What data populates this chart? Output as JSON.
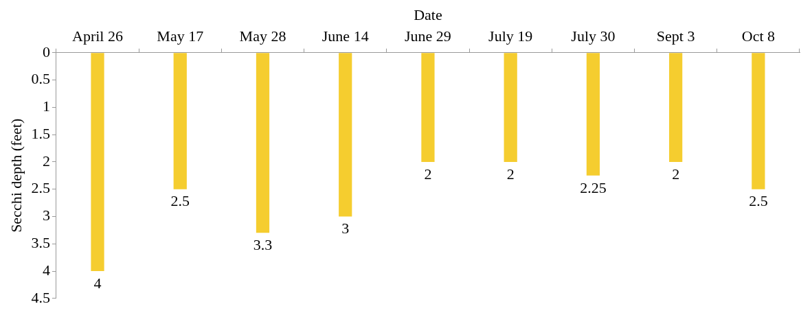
{
  "chart_data": {
    "type": "bar",
    "xlabel": "Date",
    "ylabel": "Secchi depth (feet)",
    "categories": [
      "April 26",
      "May 17",
      "May 28",
      "June 14",
      "June 29",
      "July 19",
      "July 30",
      "Sept 3",
      "Oct 8"
    ],
    "values": [
      4,
      2.5,
      3.3,
      3,
      2,
      2,
      2.25,
      2,
      2.5
    ],
    "color": "#f5cd2f",
    "ylim": [
      4.5,
      0
    ],
    "yticks": [
      0,
      0.5,
      1,
      1.5,
      2,
      2.5,
      3,
      3.5,
      4,
      4.5
    ],
    "grid": false,
    "legend": false,
    "data_labels": true
  }
}
